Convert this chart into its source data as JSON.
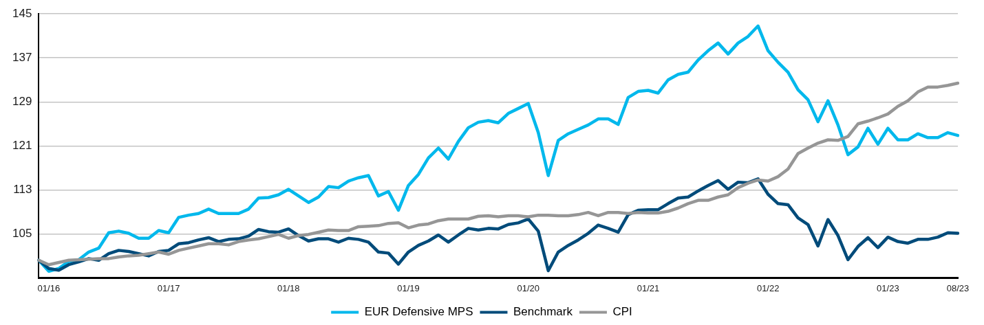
{
  "chart_data": {
    "type": "line",
    "categories": [
      null,
      "01/16",
      null,
      null,
      null,
      null,
      null,
      null,
      null,
      null,
      null,
      null,
      null,
      "01/17",
      null,
      null,
      null,
      null,
      null,
      null,
      null,
      null,
      null,
      null,
      null,
      "01/18",
      null,
      null,
      null,
      null,
      null,
      null,
      null,
      null,
      null,
      null,
      null,
      "01/19",
      null,
      null,
      null,
      null,
      null,
      null,
      null,
      null,
      null,
      null,
      null,
      "01/20",
      null,
      null,
      null,
      null,
      null,
      null,
      null,
      null,
      null,
      null,
      null,
      "01/21",
      null,
      null,
      null,
      null,
      null,
      null,
      null,
      null,
      null,
      null,
      null,
      "01/22",
      null,
      null,
      null,
      null,
      null,
      null,
      null,
      null,
      null,
      null,
      null,
      "01/23",
      null,
      null,
      null,
      null,
      null,
      null,
      "08/23"
    ],
    "series": [
      {
        "name": "EUR Defensive MPS",
        "color": "#00b8ec",
        "values": [
          100.2,
          98.2,
          98.7,
          100.0,
          100.3,
          101.7,
          102.4,
          105.2,
          105.5,
          105.1,
          104.2,
          104.2,
          105.6,
          105.2,
          108.0,
          108.4,
          108.7,
          109.5,
          108.7,
          108.7,
          108.7,
          109.5,
          111.5,
          111.6,
          112.1,
          113.1,
          111.9,
          110.7,
          111.7,
          113.6,
          113.4,
          114.6,
          115.2,
          115.6,
          111.9,
          112.7,
          109.3,
          113.8,
          115.8,
          118.8,
          120.6,
          118.6,
          121.8,
          124.3,
          125.3,
          125.6,
          125.2,
          126.9,
          127.8,
          128.7,
          123.4,
          115.6,
          122.0,
          123.2,
          124.0,
          124.8,
          125.9,
          125.9,
          124.9,
          129.8,
          130.9,
          131.1,
          130.6,
          133.0,
          134.0,
          134.4,
          136.6,
          138.3,
          139.7,
          137.7,
          139.7,
          140.9,
          142.8,
          138.3,
          136.2,
          134.4,
          131.2,
          129.4,
          125.4,
          129.2,
          124.8,
          119.4,
          120.8,
          124.2,
          121.3,
          124.2,
          122.1,
          122.1,
          123.2,
          122.5,
          122.5,
          123.4,
          122.9
        ]
      },
      {
        "name": "Benchmark",
        "color": "#004b7a",
        "values": [
          100.2,
          98.7,
          98.4,
          99.4,
          99.9,
          100.5,
          100.2,
          101.4,
          102.0,
          101.8,
          101.4,
          101.0,
          101.8,
          102.0,
          103.2,
          103.4,
          103.9,
          104.3,
          103.6,
          104.0,
          104.1,
          104.6,
          105.8,
          105.4,
          105.3,
          105.9,
          104.7,
          103.7,
          104.1,
          104.1,
          103.5,
          104.2,
          104.0,
          103.5,
          101.7,
          101.5,
          99.5,
          101.7,
          102.9,
          103.7,
          104.8,
          103.5,
          104.8,
          106.0,
          105.7,
          106.0,
          105.9,
          106.7,
          107.0,
          107.7,
          105.5,
          98.3,
          101.7,
          102.9,
          103.9,
          105.1,
          106.6,
          106.0,
          105.3,
          108.5,
          109.3,
          109.4,
          109.4,
          110.5,
          111.5,
          111.7,
          112.8,
          113.8,
          114.7,
          113.1,
          114.4,
          114.3,
          115.0,
          112.2,
          110.5,
          110.3,
          107.9,
          106.7,
          102.8,
          107.6,
          104.7,
          100.3,
          102.7,
          104.3,
          102.5,
          104.4,
          103.6,
          103.3,
          104.0,
          104.0,
          104.4,
          105.2,
          105.1
        ]
      },
      {
        "name": "CPI",
        "color": "#969696",
        "values": [
          100.2,
          99.4,
          99.8,
          100.2,
          100.3,
          100.4,
          100.5,
          100.5,
          100.8,
          101.0,
          101.1,
          101.4,
          101.7,
          101.3,
          102.0,
          102.4,
          102.8,
          103.2,
          103.2,
          103.0,
          103.6,
          103.9,
          104.1,
          104.5,
          104.9,
          104.2,
          104.7,
          104.9,
          105.3,
          105.7,
          105.6,
          105.6,
          106.3,
          106.4,
          106.5,
          106.9,
          107.0,
          106.1,
          106.6,
          106.8,
          107.4,
          107.7,
          107.7,
          107.7,
          108.2,
          108.3,
          108.1,
          108.3,
          108.3,
          108.1,
          108.4,
          108.4,
          108.3,
          108.3,
          108.5,
          108.9,
          108.3,
          108.9,
          108.9,
          108.7,
          108.9,
          108.8,
          108.8,
          109.1,
          109.7,
          110.5,
          111.1,
          111.1,
          111.7,
          112.1,
          113.4,
          114.2,
          114.8,
          114.6,
          115.4,
          116.8,
          119.6,
          120.6,
          121.5,
          122.1,
          122.0,
          122.7,
          125.0,
          125.5,
          126.1,
          126.8,
          128.2,
          129.2,
          130.8,
          131.7,
          131.7,
          132.0,
          132.4
        ]
      }
    ],
    "ylim": [
      97,
      145
    ],
    "yticks": [
      105,
      113,
      121,
      129,
      137,
      145
    ],
    "grid": "y",
    "legend": "bottom",
    "marker": "none",
    "line_style": "solid"
  }
}
